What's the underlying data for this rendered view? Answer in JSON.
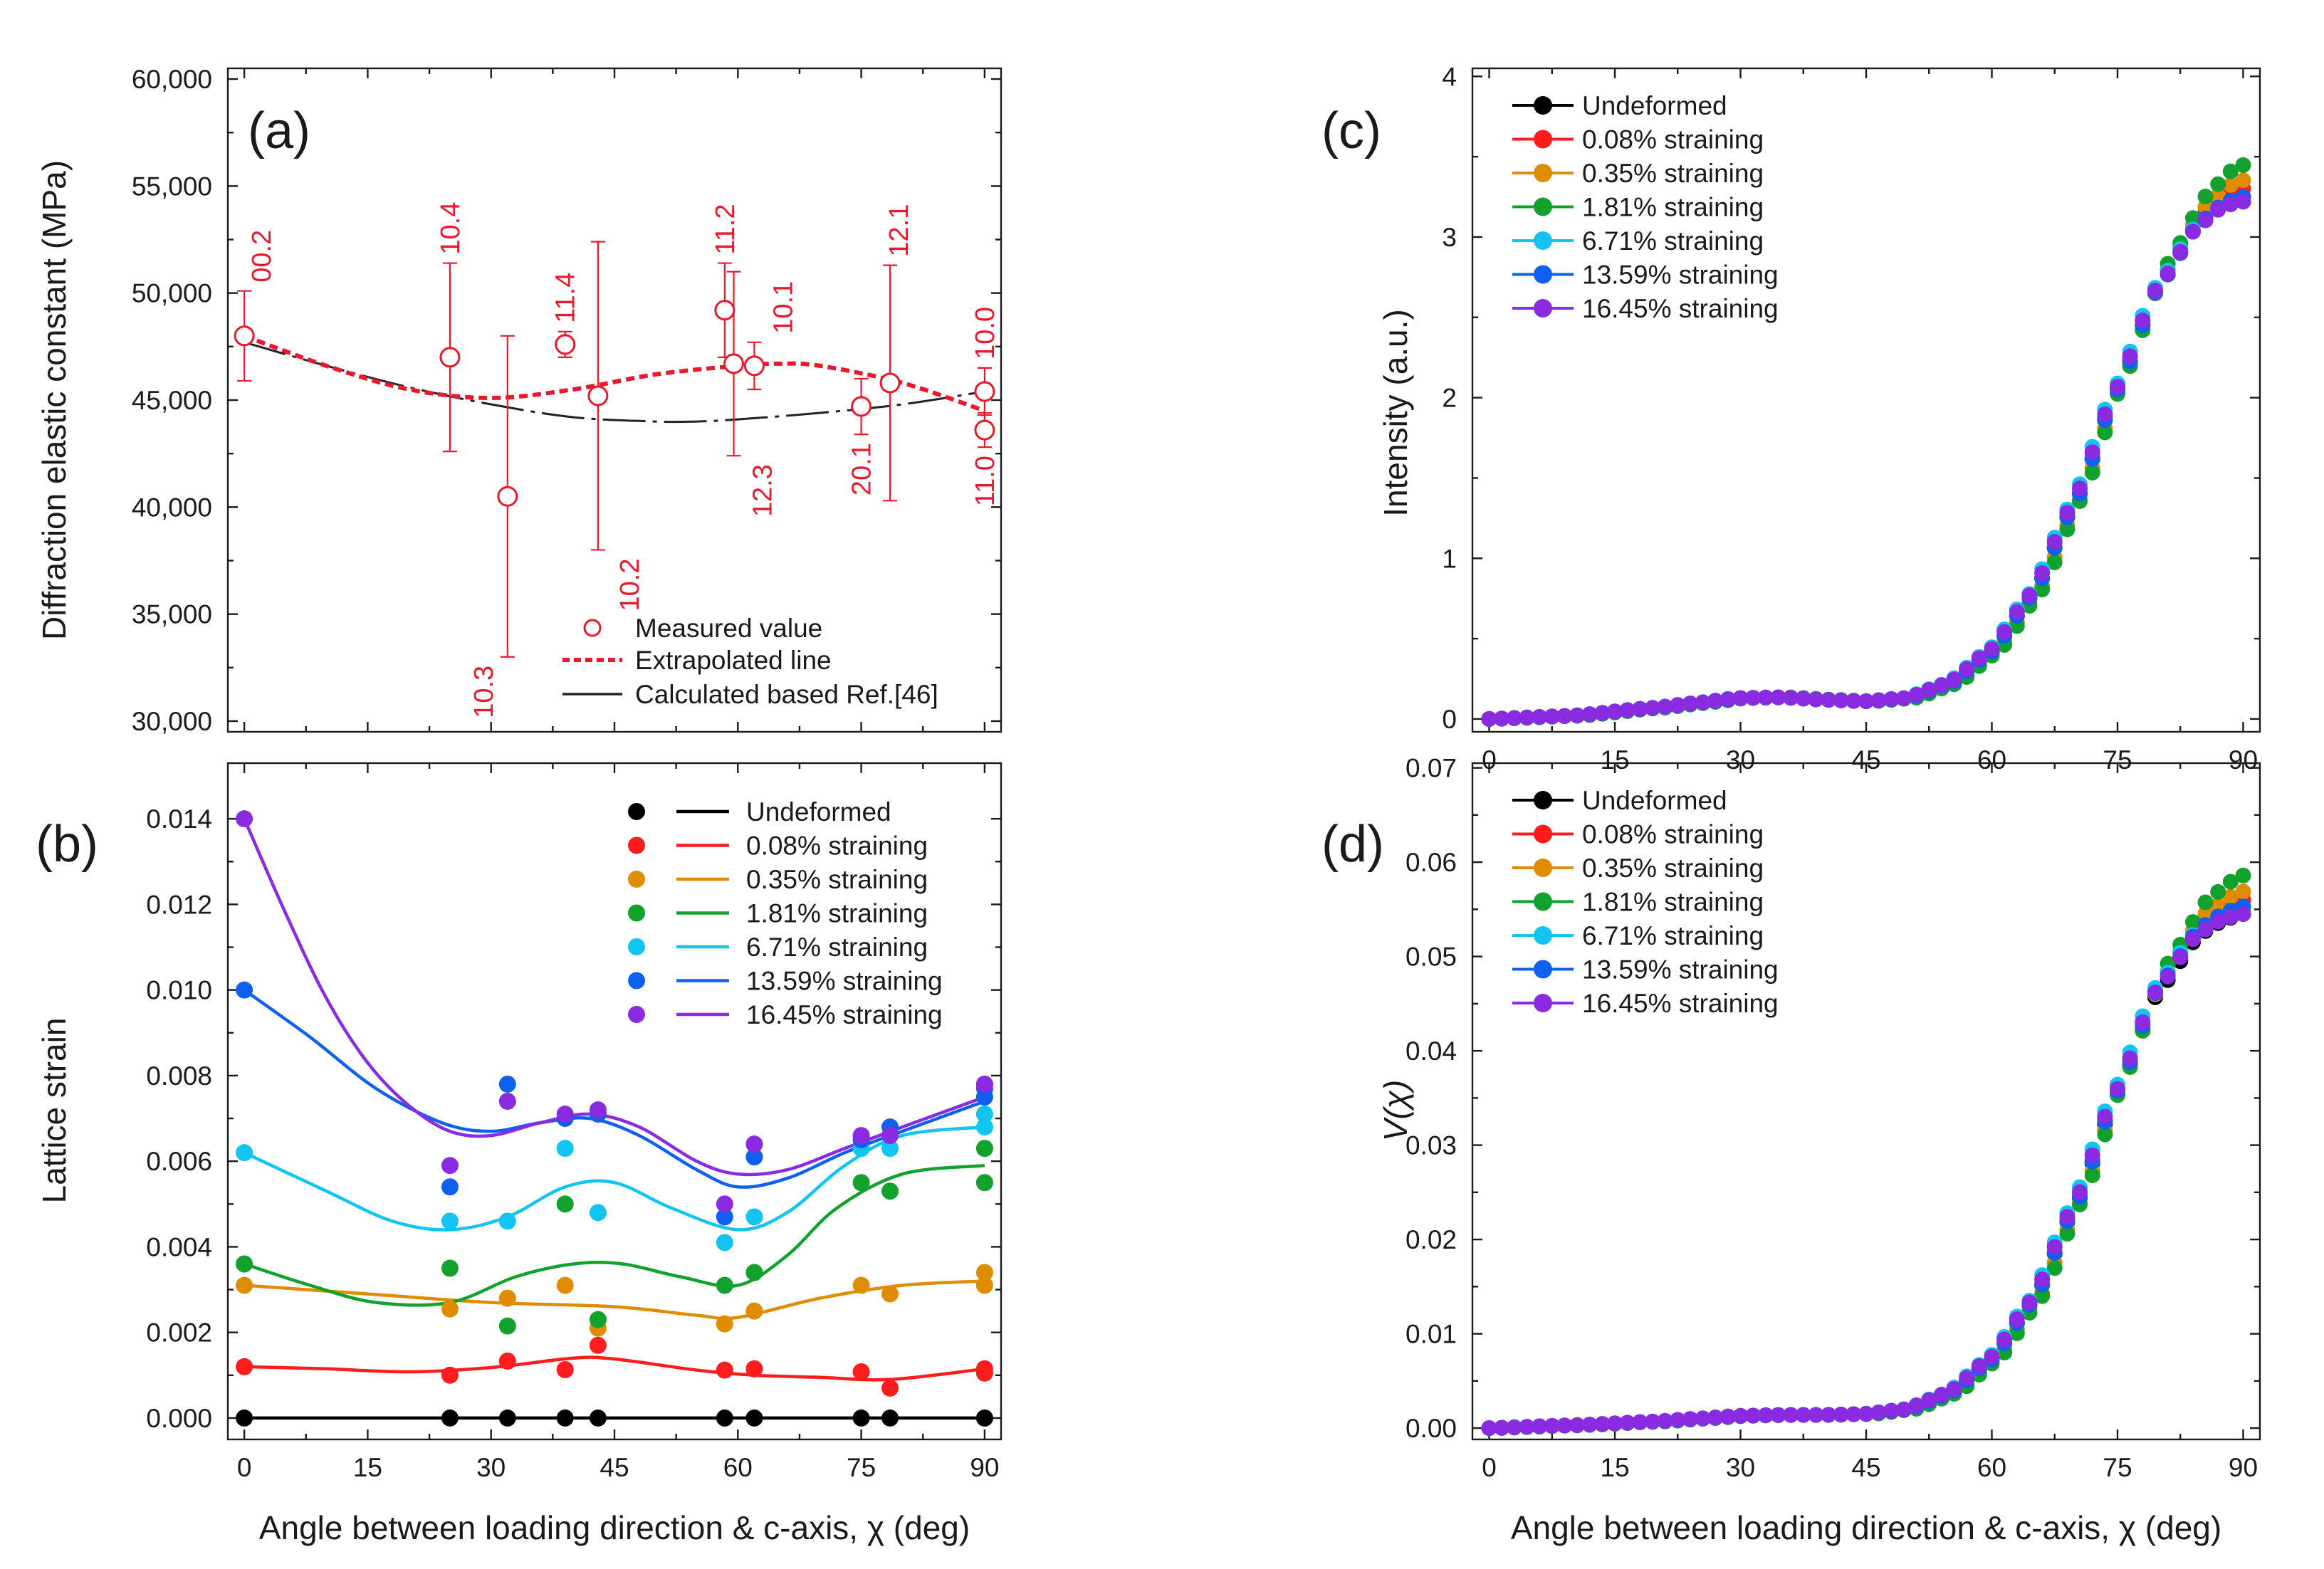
{
  "figure": {
    "xlabel": "Angle between loading direction & c-axis, χ (deg)"
  },
  "chart_data": [
    {
      "panel": "(a)",
      "type": "scatter",
      "ylabel": "Diffraction elastic constant (MPa)",
      "xlim": [
        -2,
        92
      ],
      "ylim": [
        29500,
        60500
      ],
      "xticks": [
        0,
        15,
        30,
        45,
        60,
        75,
        90
      ],
      "yticks": [
        30000,
        35000,
        40000,
        45000,
        50000,
        55000,
        60000
      ],
      "ytick_labels": [
        "30,000",
        "35,000",
        "40,000",
        "45,000",
        "50,000",
        "55,000",
        "60,000"
      ],
      "legend": {
        "measured": "Measured value",
        "extrapolated": "Extrapolated line",
        "calculated": "Calculated based Ref.[46]"
      },
      "points": [
        {
          "hkl": "00.2",
          "x": 0,
          "y": 48000,
          "err": 2100
        },
        {
          "hkl": "10.4",
          "x": 25,
          "y": 47000,
          "err": 4400
        },
        {
          "hkl": "10.3",
          "x": 32,
          "y": 40500,
          "err": 7500
        },
        {
          "hkl": "11.4",
          "x": 39,
          "y": 47600,
          "err": 600
        },
        {
          "hkl": "10.2",
          "x": 43,
          "y": 45200,
          "err": 7200
        },
        {
          "hkl": "11.2",
          "x": 58.4,
          "y": 49200,
          "err": 2200
        },
        {
          "hkl": "12.3",
          "x": 59.5,
          "y": 46700,
          "err": 4300
        },
        {
          "hkl": "10.1",
          "x": 62,
          "y": 46600,
          "err": 1100
        },
        {
          "hkl": "20.1",
          "x": 75,
          "y": 44700,
          "err": 1300
        },
        {
          "hkl": "12.1",
          "x": 78.5,
          "y": 45800,
          "err": 5500
        },
        {
          "hkl": "10.0",
          "x": 90,
          "y": 45400,
          "err": 1100
        },
        {
          "hkl": "11.0",
          "x": 90,
          "y": 43600,
          "err": 800
        }
      ],
      "extrapolated_line": {
        "x": [
          0,
          10,
          20,
          30,
          40,
          50,
          60,
          65,
          70,
          80,
          90
        ],
        "y": [
          48000,
          46600,
          45500,
          45100,
          45500,
          46200,
          46600,
          46700,
          46600,
          45800,
          44500
        ]
      },
      "calculated_line": {
        "x": [
          0,
          10,
          20,
          30,
          40,
          50,
          55,
          60,
          70,
          80,
          90
        ],
        "y": [
          47700,
          46600,
          45600,
          44800,
          44200,
          44000,
          44000,
          44100,
          44400,
          44800,
          45400
        ]
      }
    },
    {
      "panel": "(b)",
      "type": "scatter",
      "ylabel": "Lattice strain",
      "xlim": [
        -2,
        92
      ],
      "ylim": [
        -0.0005,
        0.0153
      ],
      "xticks": [
        0,
        15,
        30,
        45,
        60,
        75,
        90
      ],
      "yticks": [
        0,
        0.002,
        0.004,
        0.006,
        0.008,
        0.01,
        0.012,
        0.014
      ],
      "ytick_labels": [
        "0.000",
        "0.002",
        "0.004",
        "0.006",
        "0.008",
        "0.010",
        "0.012",
        "0.014"
      ],
      "series": [
        {
          "name": "Undeformed",
          "color": "#000000",
          "points": [
            [
              0,
              0
            ],
            [
              25,
              0
            ],
            [
              32,
              0
            ],
            [
              39,
              0
            ],
            [
              43,
              0
            ],
            [
              58.4,
              0
            ],
            [
              62,
              0
            ],
            [
              75,
              0
            ],
            [
              78.5,
              0
            ],
            [
              90,
              0
            ],
            [
              90,
              0
            ]
          ],
          "curve": [
            [
              0,
              0
            ],
            [
              90,
              0
            ]
          ]
        },
        {
          "name": "0.08% straining",
          "color": "#ff1c1c",
          "points": [
            [
              0,
              0.0012
            ],
            [
              25,
              0.001
            ],
            [
              32,
              0.00133
            ],
            [
              39,
              0.00113
            ],
            [
              43,
              0.0017
            ],
            [
              58.4,
              0.00112
            ],
            [
              62,
              0.00115
            ],
            [
              75,
              0.00108
            ],
            [
              78.5,
              0.0007
            ],
            [
              90,
              0.00115
            ],
            [
              90,
              0.00105
            ]
          ],
          "curve": [
            [
              0,
              0.0012
            ],
            [
              10,
              0.00115
            ],
            [
              20,
              0.00108
            ],
            [
              30,
              0.00118
            ],
            [
              40,
              0.0014
            ],
            [
              45,
              0.00138
            ],
            [
              55,
              0.00112
            ],
            [
              62,
              0.001
            ],
            [
              70,
              0.00095
            ],
            [
              78.5,
              0.0009
            ],
            [
              90,
              0.00115
            ]
          ]
        },
        {
          "name": "0.35% straining",
          "color": "#e08c00",
          "points": [
            [
              0,
              0.0031
            ],
            [
              25,
              0.00255
            ],
            [
              32,
              0.0028
            ],
            [
              39,
              0.0031
            ],
            [
              43,
              0.0021
            ],
            [
              58.4,
              0.0022
            ],
            [
              62,
              0.0025
            ],
            [
              75,
              0.0031
            ],
            [
              78.5,
              0.0029
            ],
            [
              90,
              0.0034
            ],
            [
              90,
              0.0031
            ]
          ],
          "curve": [
            [
              0,
              0.0031
            ],
            [
              15,
              0.0029
            ],
            [
              30,
              0.0027
            ],
            [
              45,
              0.0026
            ],
            [
              55,
              0.0024
            ],
            [
              60,
              0.00235
            ],
            [
              70,
              0.0028
            ],
            [
              80,
              0.0031
            ],
            [
              90,
              0.0032
            ]
          ]
        },
        {
          "name": "1.81% straining",
          "color": "#12a12c",
          "points": [
            [
              0,
              0.0036
            ],
            [
              25,
              0.0035
            ],
            [
              32,
              0.00215
            ],
            [
              39,
              0.005
            ],
            [
              43,
              0.0023
            ],
            [
              58.4,
              0.0031
            ],
            [
              62,
              0.0034
            ],
            [
              75,
              0.0055
            ],
            [
              78.5,
              0.0053
            ],
            [
              90,
              0.0063
            ],
            [
              90,
              0.0055
            ]
          ],
          "curve": [
            [
              0,
              0.0036
            ],
            [
              8,
              0.0031
            ],
            [
              16,
              0.0027
            ],
            [
              25,
              0.0027
            ],
            [
              33,
              0.0033
            ],
            [
              40,
              0.0036
            ],
            [
              46,
              0.0036
            ],
            [
              53,
              0.0033
            ],
            [
              60,
              0.0031
            ],
            [
              66,
              0.0038
            ],
            [
              72,
              0.0049
            ],
            [
              80,
              0.0057
            ],
            [
              90,
              0.0059
            ]
          ]
        },
        {
          "name": "6.71% straining",
          "color": "#12c4f2",
          "points": [
            [
              0,
              0.0062
            ],
            [
              25,
              0.0046
            ],
            [
              32,
              0.0046
            ],
            [
              39,
              0.0063
            ],
            [
              43,
              0.0048
            ],
            [
              58.4,
              0.0041
            ],
            [
              62,
              0.0047
            ],
            [
              75,
              0.0063
            ],
            [
              78.5,
              0.0063
            ],
            [
              90,
              0.0068
            ],
            [
              90,
              0.0071
            ]
          ],
          "curve": [
            [
              0,
              0.0062
            ],
            [
              10,
              0.0053
            ],
            [
              18,
              0.0046
            ],
            [
              25,
              0.0044
            ],
            [
              32,
              0.0047
            ],
            [
              39,
              0.0054
            ],
            [
              45,
              0.0055
            ],
            [
              52,
              0.0049
            ],
            [
              60,
              0.0044
            ],
            [
              66,
              0.0048
            ],
            [
              73,
              0.0059
            ],
            [
              80,
              0.0066
            ],
            [
              90,
              0.0068
            ]
          ]
        },
        {
          "name": "13.59% straining",
          "color": "#1060f0",
          "points": [
            [
              0,
              0.01
            ],
            [
              25,
              0.0054
            ],
            [
              32,
              0.0078
            ],
            [
              39,
              0.007
            ],
            [
              43,
              0.0071
            ],
            [
              58.4,
              0.0047
            ],
            [
              62,
              0.0061
            ],
            [
              75,
              0.0065
            ],
            [
              78.5,
              0.0068
            ],
            [
              90,
              0.0077
            ],
            [
              90,
              0.0075
            ]
          ],
          "curve": [
            [
              0,
              0.01
            ],
            [
              8,
              0.0089
            ],
            [
              16,
              0.0077
            ],
            [
              24,
              0.0069
            ],
            [
              30,
              0.0067
            ],
            [
              36,
              0.0069
            ],
            [
              42,
              0.007
            ],
            [
              48,
              0.0066
            ],
            [
              55,
              0.0058
            ],
            [
              60,
              0.0054
            ],
            [
              66,
              0.0056
            ],
            [
              73,
              0.0062
            ],
            [
              80,
              0.0067
            ],
            [
              90,
              0.0074
            ]
          ]
        },
        {
          "name": "16.45% straining",
          "color": "#8a2be2",
          "points": [
            [
              0,
              0.014
            ],
            [
              25,
              0.0059
            ],
            [
              32,
              0.0074
            ],
            [
              39,
              0.0071
            ],
            [
              43,
              0.0072
            ],
            [
              58.4,
              0.005
            ],
            [
              62,
              0.0064
            ],
            [
              75,
              0.0066
            ],
            [
              78.5,
              0.0066
            ],
            [
              90,
              0.0078
            ],
            [
              90,
              0.0078
            ]
          ],
          "curve": [
            [
              0,
              0.014
            ],
            [
              5,
              0.0118
            ],
            [
              10,
              0.0098
            ],
            [
              15,
              0.0083
            ],
            [
              20,
              0.0073
            ],
            [
              25,
              0.0067
            ],
            [
              30,
              0.0066
            ],
            [
              36,
              0.0069
            ],
            [
              42,
              0.0071
            ],
            [
              48,
              0.0068
            ],
            [
              55,
              0.006
            ],
            [
              60,
              0.0057
            ],
            [
              66,
              0.0058
            ],
            [
              73,
              0.0063
            ],
            [
              80,
              0.0068
            ],
            [
              90,
              0.0075
            ]
          ]
        }
      ]
    },
    {
      "panel": "(c)",
      "type": "scatter",
      "ylabel": "Intensity (a.u.)",
      "xlim": [
        -2,
        92
      ],
      "ylim": [
        -0.08,
        4.05
      ],
      "xticks": [
        0,
        15,
        30,
        45,
        60,
        75,
        90
      ],
      "yticks": [
        0,
        1,
        2,
        3,
        4
      ],
      "ytick_labels": [
        "0",
        "1",
        "2",
        "3",
        "4"
      ],
      "x_step": 1.5,
      "profile": {
        "x": [
          0,
          10,
          20,
          25,
          30,
          35,
          40,
          45,
          50,
          55,
          60,
          65,
          70,
          75,
          80,
          85,
          88,
          90
        ],
        "y": [
          0,
          0.02,
          0.07,
          0.1,
          0.13,
          0.135,
          0.12,
          0.11,
          0.13,
          0.22,
          0.42,
          0.78,
          1.35,
          2.05,
          2.7,
          3.1,
          3.22,
          3.25
        ]
      },
      "series": [
        {
          "name": "Undeformed",
          "color": "#000000",
          "end": 3.25,
          "shift": 0
        },
        {
          "name": "0.08% straining",
          "color": "#ff1c1c",
          "end": 3.3,
          "shift": 0
        },
        {
          "name": "0.35% straining",
          "color": "#e08c00",
          "end": 3.36,
          "shift": 0.5
        },
        {
          "name": "1.81% straining",
          "color": "#12a12c",
          "end": 3.46,
          "shift": 0.8
        },
        {
          "name": "6.71% straining",
          "color": "#12c4f2",
          "end": 3.22,
          "shift": -0.5
        },
        {
          "name": "13.59% straining",
          "color": "#1060f0",
          "end": 3.25,
          "shift": 0
        },
        {
          "name": "16.45% straining",
          "color": "#8a2be2",
          "end": 3.22,
          "shift": -0.3
        }
      ]
    },
    {
      "panel": "(d)",
      "type": "scatter",
      "ylabel": "V(χ)",
      "xlim": [
        -2,
        92
      ],
      "ylim": [
        -0.0012,
        0.0705
      ],
      "xticks": [
        0,
        15,
        30,
        45,
        60,
        75,
        90
      ],
      "yticks": [
        0,
        0.01,
        0.02,
        0.03,
        0.04,
        0.05,
        0.06,
        0.07
      ],
      "ytick_labels": [
        "0.00",
        "0.01",
        "0.02",
        "0.03",
        "0.04",
        "0.05",
        "0.06",
        "0.07"
      ],
      "x_step": 1.5,
      "profile": {
        "x": [
          0,
          10,
          20,
          25,
          30,
          35,
          40,
          45,
          50,
          55,
          60,
          65,
          70,
          75,
          80,
          85,
          88,
          90
        ],
        "y": [
          0,
          0.0003,
          0.0007,
          0.001,
          0.0013,
          0.0014,
          0.0014,
          0.0015,
          0.002,
          0.0037,
          0.0073,
          0.0135,
          0.0235,
          0.0355,
          0.0465,
          0.0525,
          0.054,
          0.0545
        ]
      },
      "series": [
        {
          "name": "Undeformed",
          "color": "#000000",
          "end": 0.0545,
          "shift": 0
        },
        {
          "name": "0.08% straining",
          "color": "#ff1c1c",
          "end": 0.056,
          "shift": 0
        },
        {
          "name": "0.35% straining",
          "color": "#e08c00",
          "end": 0.057,
          "shift": 0.5
        },
        {
          "name": "1.81% straining",
          "color": "#12a12c",
          "end": 0.0588,
          "shift": 0.8
        },
        {
          "name": "6.71% straining",
          "color": "#12c4f2",
          "end": 0.0548,
          "shift": -0.5
        },
        {
          "name": "13.59% straining",
          "color": "#1060f0",
          "end": 0.0553,
          "shift": 0
        },
        {
          "name": "16.45% straining",
          "color": "#8a2be2",
          "end": 0.0545,
          "shift": -0.3
        }
      ]
    }
  ]
}
